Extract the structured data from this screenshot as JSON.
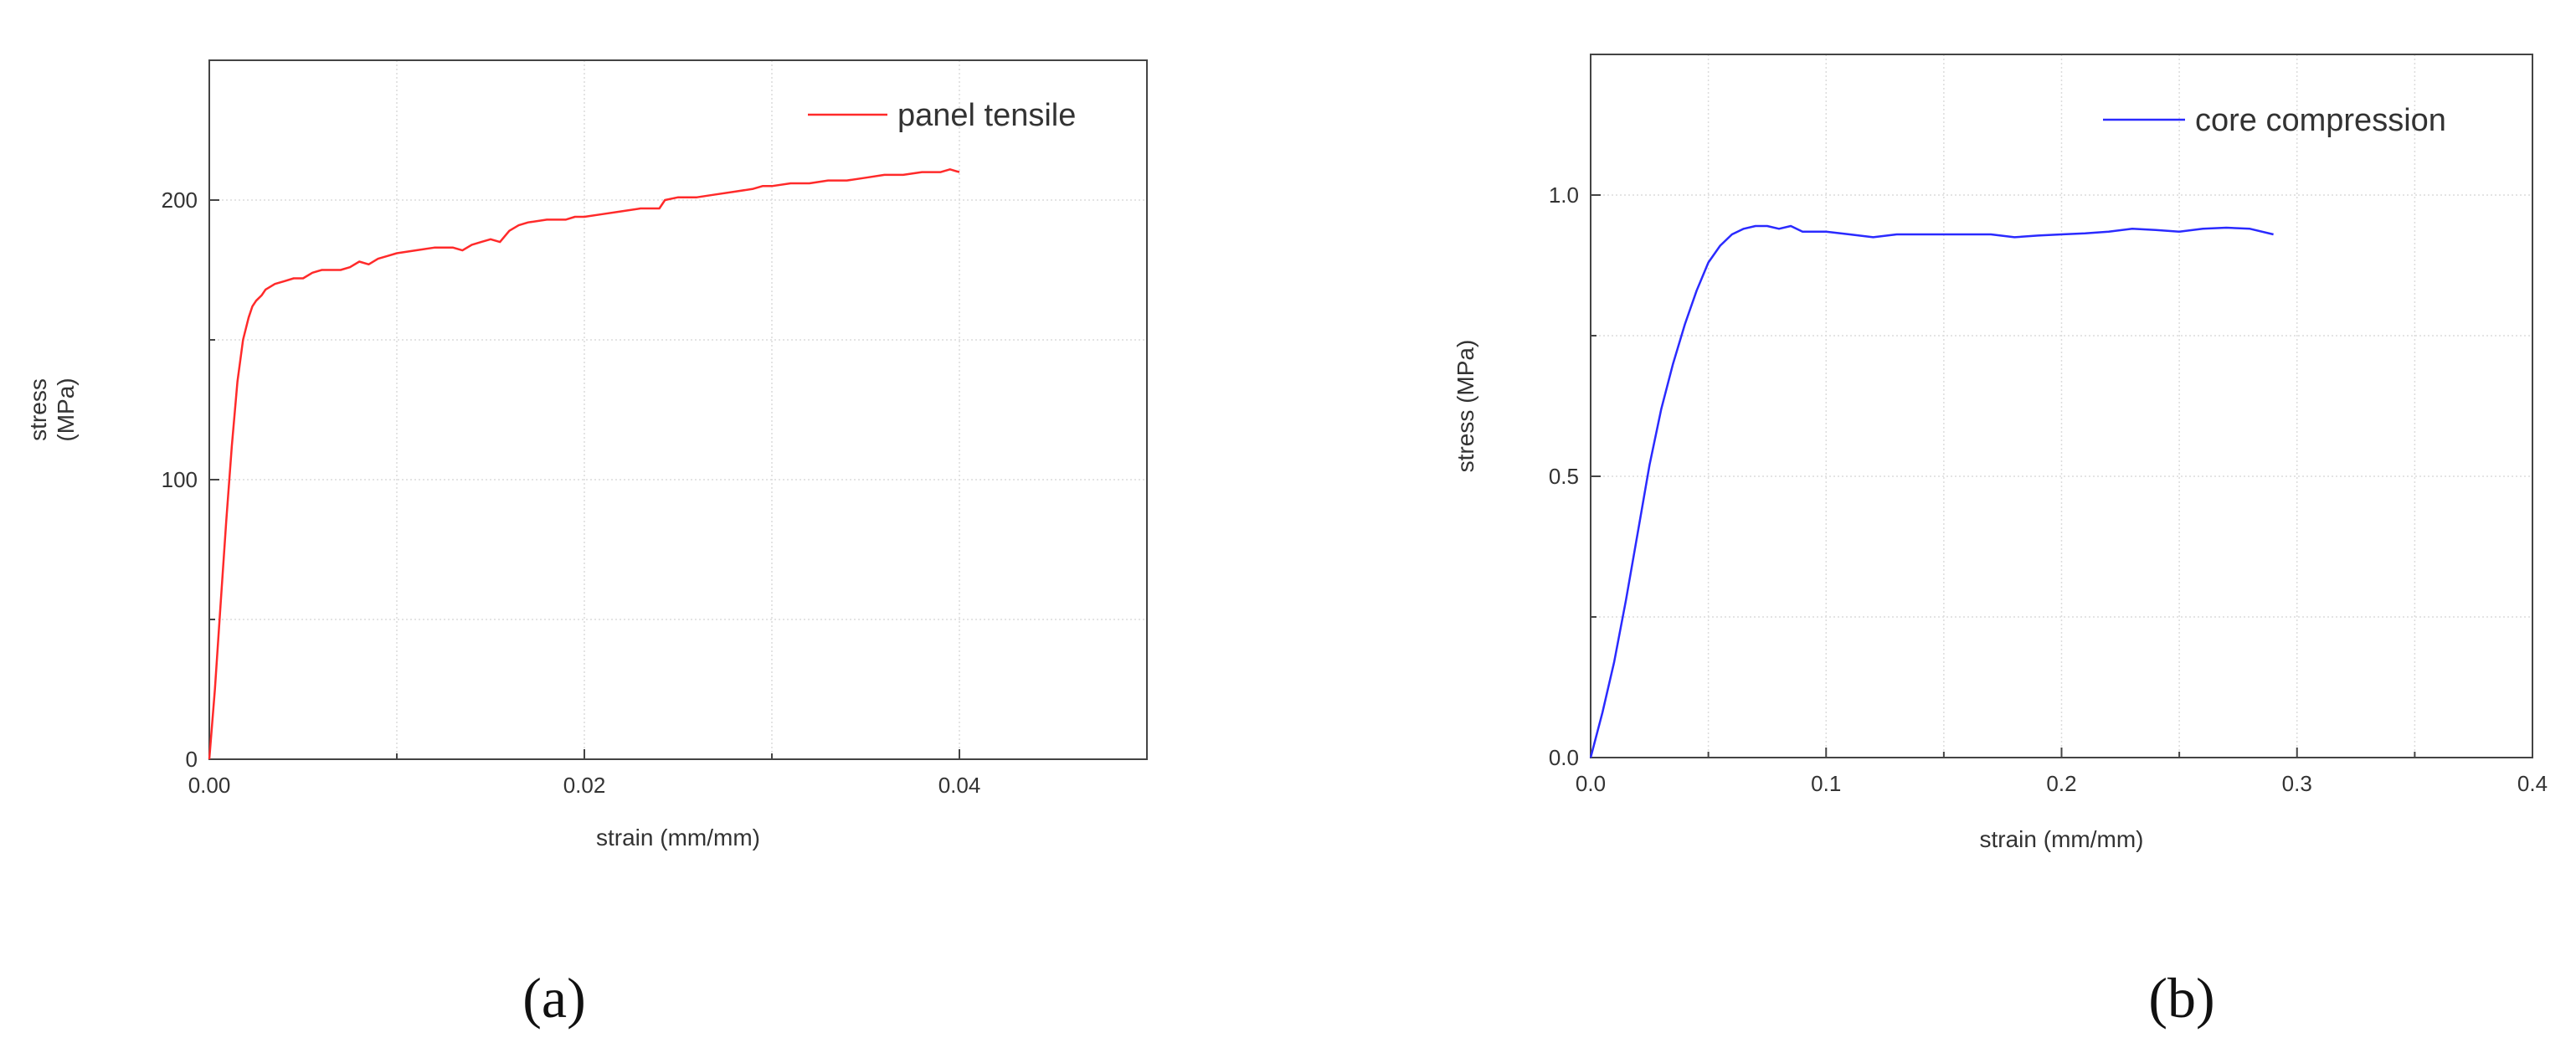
{
  "chart_data": [
    {
      "type": "line",
      "panel_label": "(a)",
      "xlabel": "strain (mm/mm)",
      "ylabel": [
        "stress",
        "(MPa)"
      ],
      "xlim": [
        0,
        0.05
      ],
      "ylim": [
        0,
        250
      ],
      "xticks": [
        0.0,
        0.02,
        0.04
      ],
      "xtick_labels": [
        "0.00",
        "0.02",
        "0.04"
      ],
      "yticks": [
        0,
        100,
        200
      ],
      "ytick_labels": [
        "0",
        "100",
        "200"
      ],
      "grid": true,
      "legend_position": "top-right",
      "series": [
        {
          "name": "panel tensile",
          "color": "#ff2a2a",
          "x": [
            0,
            0.0003,
            0.0006,
            0.0009,
            0.0012,
            0.0015,
            0.0018,
            0.0021,
            0.0023,
            0.0025,
            0.0028,
            0.003,
            0.0035,
            0.004,
            0.0045,
            0.005,
            0.0055,
            0.006,
            0.007,
            0.0075,
            0.008,
            0.0085,
            0.009,
            0.0095,
            0.01,
            0.011,
            0.012,
            0.013,
            0.0135,
            0.014,
            0.0145,
            0.015,
            0.0155,
            0.016,
            0.0165,
            0.017,
            0.018,
            0.019,
            0.0195,
            0.02,
            0.021,
            0.022,
            0.023,
            0.024,
            0.0243,
            0.025,
            0.026,
            0.027,
            0.028,
            0.029,
            0.0295,
            0.03,
            0.031,
            0.032,
            0.033,
            0.034,
            0.035,
            0.036,
            0.037,
            0.038,
            0.039,
            0.0395,
            0.04
          ],
          "y": [
            0,
            25,
            55,
            85,
            112,
            135,
            150,
            158,
            162,
            164,
            166,
            168,
            170,
            171,
            172,
            172,
            174,
            175,
            175,
            176,
            178,
            177,
            179,
            180,
            181,
            182,
            183,
            183,
            182,
            184,
            185,
            186,
            185,
            189,
            191,
            192,
            193,
            193,
            194,
            194,
            195,
            196,
            197,
            197,
            200,
            201,
            201,
            202,
            203,
            204,
            205,
            205,
            206,
            206,
            207,
            207,
            208,
            209,
            209,
            210,
            210,
            211,
            210
          ]
        }
      ]
    },
    {
      "type": "line",
      "panel_label": "(b)",
      "xlabel": "strain (mm/mm)",
      "ylabel": [
        "stress (MPa)"
      ],
      "xlim": [
        0,
        0.4
      ],
      "ylim": [
        0,
        1.25
      ],
      "xticks": [
        0.0,
        0.1,
        0.2,
        0.3,
        0.4
      ],
      "xtick_labels": [
        "0.0",
        "0.1",
        "0.2",
        "0.3",
        "0.4"
      ],
      "yticks": [
        0.0,
        0.5,
        1.0
      ],
      "ytick_labels": [
        "0.0",
        "0.5",
        "1.0"
      ],
      "grid": true,
      "legend_position": "top-right",
      "series": [
        {
          "name": "core compression",
          "color": "#2a2aff",
          "x": [
            0,
            0.005,
            0.01,
            0.015,
            0.02,
            0.025,
            0.03,
            0.035,
            0.04,
            0.045,
            0.05,
            0.055,
            0.06,
            0.065,
            0.07,
            0.075,
            0.08,
            0.085,
            0.09,
            0.1,
            0.11,
            0.12,
            0.13,
            0.14,
            0.15,
            0.16,
            0.17,
            0.18,
            0.19,
            0.2,
            0.21,
            0.22,
            0.23,
            0.24,
            0.25,
            0.26,
            0.27,
            0.28,
            0.29
          ],
          "y": [
            0,
            0.08,
            0.17,
            0.28,
            0.4,
            0.52,
            0.62,
            0.7,
            0.77,
            0.83,
            0.88,
            0.91,
            0.93,
            0.94,
            0.945,
            0.945,
            0.94,
            0.945,
            0.935,
            0.935,
            0.93,
            0.925,
            0.93,
            0.93,
            0.93,
            0.93,
            0.93,
            0.925,
            0.928,
            0.93,
            0.932,
            0.935,
            0.94,
            0.938,
            0.935,
            0.94,
            0.942,
            0.94,
            0.93
          ]
        }
      ]
    }
  ]
}
